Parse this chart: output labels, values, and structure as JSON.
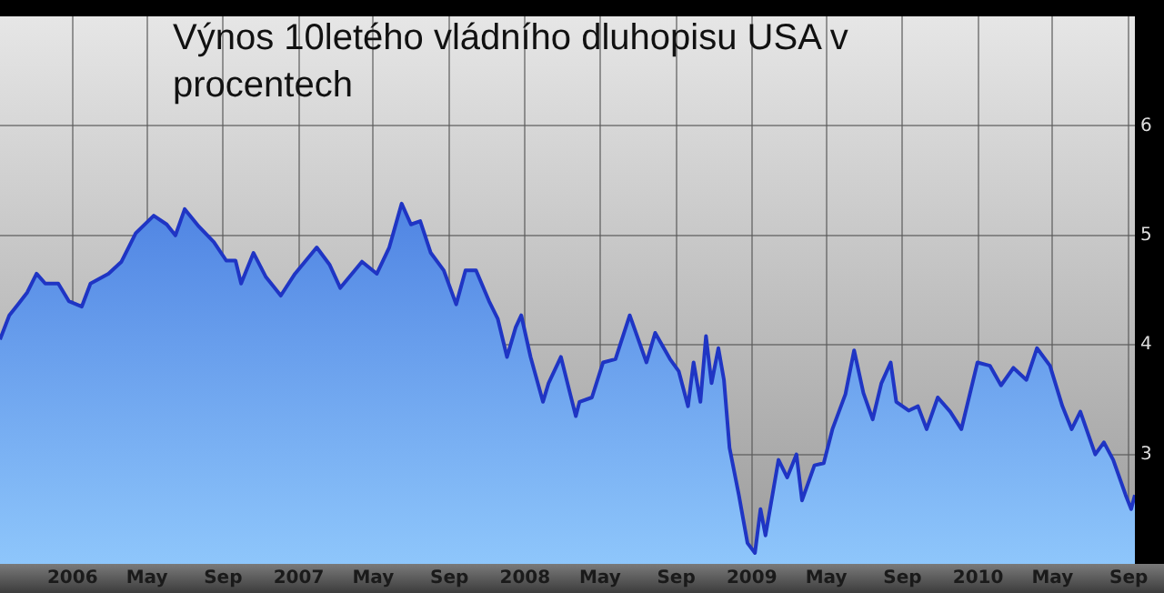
{
  "chart_data": {
    "type": "area",
    "title": "Výnos 10letého vládního dluhopisu USA v procentech",
    "x": [
      "2005-09-06",
      "2005-09-21",
      "2005-10-05",
      "2005-10-20",
      "2005-11-04",
      "2005-11-18",
      "2005-12-09",
      "2005-12-26",
      "2006-01-16",
      "2006-01-30",
      "2006-02-28",
      "2006-03-21",
      "2006-04-13",
      "2006-05-12",
      "2006-06-02",
      "2006-06-16",
      "2006-07-01",
      "2006-07-24",
      "2006-08-17",
      "2006-09-06",
      "2006-09-21",
      "2006-09-30",
      "2006-10-20",
      "2006-11-09",
      "2006-12-03",
      "2006-12-26",
      "2007-01-30",
      "2007-02-20",
      "2007-03-09",
      "2007-04-13",
      "2007-05-07",
      "2007-05-27",
      "2007-06-16",
      "2007-07-01",
      "2007-07-16",
      "2007-08-02",
      "2007-08-23",
      "2007-09-12",
      "2007-09-27",
      "2007-10-14",
      "2007-11-04",
      "2007-11-18",
      "2007-12-03",
      "2007-12-17",
      "2007-12-26",
      "2008-01-10",
      "2008-01-30",
      "2008-02-08",
      "2008-02-28",
      "2008-03-14",
      "2008-03-23",
      "2008-03-29",
      "2008-04-18",
      "2008-05-06",
      "2008-05-26",
      "2008-06-18",
      "2008-07-15",
      "2008-07-29",
      "2008-08-22",
      "2008-09-05",
      "2008-09-20",
      "2008-09-29",
      "2008-10-10",
      "2008-10-19",
      "2008-10-28",
      "2008-11-08",
      "2008-11-17",
      "2008-11-26",
      "2008-12-11",
      "2008-12-25",
      "2009-01-06",
      "2009-01-15",
      "2009-01-23",
      "2009-02-13",
      "2009-02-27",
      "2009-03-14",
      "2009-03-23",
      "2009-04-12",
      "2009-04-27",
      "2009-05-11",
      "2009-06-01",
      "2009-06-15",
      "2009-06-30",
      "2009-07-15",
      "2009-07-29",
      "2009-08-13",
      "2009-08-22",
      "2009-09-11",
      "2009-09-26",
      "2009-10-10",
      "2009-10-28",
      "2009-11-17",
      "2009-12-05",
      "2009-12-31",
      "2010-01-20",
      "2010-02-07",
      "2010-02-27",
      "2010-03-20",
      "2010-04-06",
      "2010-04-27",
      "2010-05-17",
      "2010-06-01",
      "2010-06-15",
      "2010-07-09",
      "2010-07-23",
      "2010-08-07",
      "2010-08-27",
      "2010-09-05",
      "2010-09-11"
    ],
    "series": [
      {
        "color": "#1f35c4",
        "values": [
          4.05,
          4.27,
          4.37,
          4.48,
          4.65,
          4.56,
          4.56,
          4.4,
          4.35,
          4.56,
          4.65,
          4.76,
          5.02,
          5.18,
          5.1,
          5.0,
          5.24,
          5.08,
          4.94,
          4.77,
          4.77,
          4.56,
          4.84,
          4.62,
          4.45,
          4.65,
          4.89,
          4.73,
          4.52,
          4.76,
          4.65,
          4.89,
          5.29,
          5.1,
          5.13,
          4.84,
          4.68,
          4.37,
          4.68,
          4.68,
          4.4,
          4.24,
          3.89,
          4.16,
          4.27,
          3.89,
          3.48,
          3.65,
          3.89,
          3.55,
          3.35,
          3.48,
          3.52,
          3.84,
          3.87,
          4.27,
          3.84,
          4.11,
          3.87,
          3.76,
          3.44,
          3.84,
          3.48,
          4.08,
          3.65,
          3.97,
          3.68,
          3.06,
          2.63,
          2.19,
          2.1,
          2.5,
          2.26,
          2.95,
          2.79,
          3.0,
          2.58,
          2.9,
          2.92,
          3.23,
          3.55,
          3.95,
          3.56,
          3.32,
          3.65,
          3.84,
          3.48,
          3.4,
          3.44,
          3.23,
          3.52,
          3.39,
          3.23,
          3.84,
          3.81,
          3.63,
          3.79,
          3.68,
          3.97,
          3.81,
          3.44,
          3.23,
          3.39,
          3.0,
          3.11,
          2.95,
          2.63,
          2.5,
          2.63
        ]
      }
    ],
    "xlim": [
      "2005-09-06",
      "2010-09-11"
    ],
    "xticks": [
      {
        "value": "2006-01",
        "label": "2006"
      },
      {
        "value": "2006-05",
        "label": "May"
      },
      {
        "value": "2006-09",
        "label": "Sep"
      },
      {
        "value": "2007-01",
        "label": "2007"
      },
      {
        "value": "2007-05",
        "label": "May"
      },
      {
        "value": "2007-09",
        "label": "Sep"
      },
      {
        "value": "2008-01",
        "label": "2008"
      },
      {
        "value": "2008-05",
        "label": "May"
      },
      {
        "value": "2008-09",
        "label": "Sep"
      },
      {
        "value": "2009-01",
        "label": "2009"
      },
      {
        "value": "2009-05",
        "label": "May"
      },
      {
        "value": "2009-09",
        "label": "Sep"
      },
      {
        "value": "2010-01",
        "label": "2010"
      },
      {
        "value": "2010-05",
        "label": "May"
      },
      {
        "value": "2010-09",
        "label": "Sep"
      }
    ],
    "ylim": [
      2,
      7
    ],
    "yticks": [
      3,
      4,
      5,
      6
    ],
    "grid": true,
    "legend": false
  }
}
